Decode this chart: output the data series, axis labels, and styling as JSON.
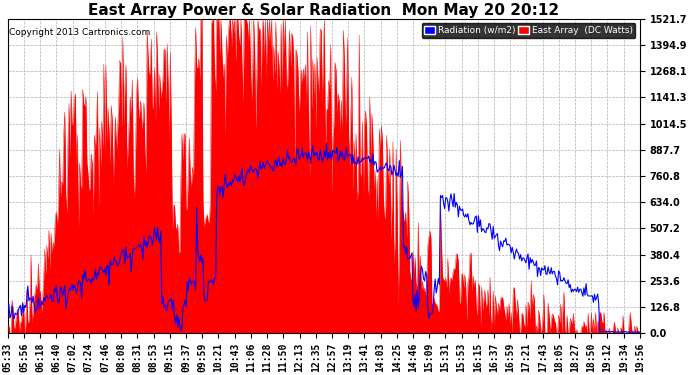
{
  "title": "East Array Power & Solar Radiation  Mon May 20 20:12",
  "copyright": "Copyright 2013 Cartronics.com",
  "ylabel_right_ticks": [
    0.0,
    126.8,
    253.6,
    380.4,
    507.2,
    634.0,
    760.8,
    887.7,
    1014.5,
    1141.3,
    1268.1,
    1394.9,
    1521.7
  ],
  "ymax": 1521.7,
  "ymin": 0.0,
  "legend_radiation_label": "Radiation (w/m2)",
  "legend_east_label": "East Array  (DC Watts)",
  "legend_radiation_bg": "#0000ff",
  "legend_east_bg": "#ff0000",
  "fill_color": "#ff0000",
  "line_color": "#0000ff",
  "background_color": "#ffffff",
  "grid_color": "#b0b0b0",
  "title_fontsize": 11,
  "tick_label_fontsize": 7,
  "x_tick_labels": [
    "05:33",
    "05:56",
    "06:18",
    "06:40",
    "07:02",
    "07:24",
    "07:46",
    "08:08",
    "08:31",
    "08:53",
    "09:15",
    "09:37",
    "09:59",
    "10:21",
    "10:43",
    "11:06",
    "11:28",
    "11:50",
    "12:13",
    "12:35",
    "12:57",
    "13:19",
    "13:41",
    "14:03",
    "14:25",
    "14:46",
    "15:09",
    "15:31",
    "15:53",
    "16:15",
    "16:37",
    "16:59",
    "17:21",
    "17:43",
    "18:05",
    "18:27",
    "18:50",
    "19:12",
    "19:34",
    "19:56"
  ]
}
